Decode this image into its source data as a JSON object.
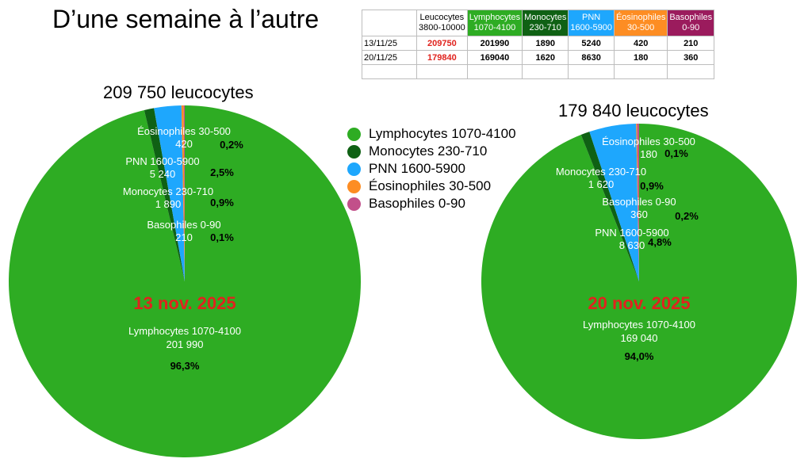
{
  "title": "D’une semaine à l’autre",
  "table": {
    "headers": [
      {
        "label": "Leucocytes\n3800-10000",
        "bg": "#ffffff",
        "fg": "#000000"
      },
      {
        "label": "Lymphocytes\n1070-4100",
        "bg": "#2eac23",
        "fg": "#ffffff"
      },
      {
        "label": "Monocytes\n230-710",
        "bg": "#0f6114",
        "fg": "#ffffff"
      },
      {
        "label": "PNN\n1600-5900",
        "bg": "#1ea7fd",
        "fg": "#ffffff"
      },
      {
        "label": "Éosinophiles\n30-500",
        "bg": "#fd8d23",
        "fg": "#ffffff"
      },
      {
        "label": "Basophiles\n0-90",
        "bg": "#9b1b5d",
        "fg": "#ffffff"
      }
    ],
    "rows": [
      {
        "date": "13/11/25",
        "values": [
          "209750",
          "201990",
          "1890",
          "5240",
          "420",
          "210"
        ]
      },
      {
        "date": "20/11/25",
        "values": [
          "179840",
          "169040",
          "1620",
          "8630",
          "180",
          "360"
        ]
      }
    ]
  },
  "legend": [
    {
      "label": "Lymphocytes 1070-4100",
      "color": "#2eac23"
    },
    {
      "label": "Monocytes 230-710",
      "color": "#0f6114"
    },
    {
      "label": "PNN 1600-5900",
      "color": "#1ea7fd"
    },
    {
      "label": "Éosinophiles 30-500",
      "color": "#fd8d23"
    },
    {
      "label": "Basophiles 0-90",
      "color": "#c2508a"
    }
  ],
  "chart_data": [
    {
      "type": "pie",
      "title": "209 750 leucocytes",
      "date_label": "13 nov. 2025",
      "slices": [
        {
          "name": "Lymphocytes 1070-4100",
          "value": 201990,
          "value_label": "201 990",
          "pct": "96,3%",
          "color": "#2eac23"
        },
        {
          "name": "Monocytes 230-710",
          "value": 1890,
          "value_label": "1 890",
          "pct": "0,9%",
          "color": "#0f6114"
        },
        {
          "name": "PNN 1600-5900",
          "value": 5240,
          "value_label": "5 240",
          "pct": "2,5%",
          "color": "#1ea7fd"
        },
        {
          "name": "Éosinophiles 30-500",
          "value": 420,
          "value_label": "420",
          "pct": "0,2%",
          "color": "#fd8d23"
        },
        {
          "name": "Basophiles 0-90",
          "value": 210,
          "value_label": "210",
          "pct": "0,1%",
          "color": "#c2508a"
        }
      ]
    },
    {
      "type": "pie",
      "title": "179 840 leucocytes",
      "date_label": "20 nov. 2025",
      "slices": [
        {
          "name": "Lymphocytes 1070-4100",
          "value": 169040,
          "value_label": "169 040",
          "pct": "94,0%",
          "color": "#2eac23"
        },
        {
          "name": "Monocytes 230-710",
          "value": 1620,
          "value_label": "1 620",
          "pct": "0,9%",
          "color": "#0f6114"
        },
        {
          "name": "PNN 1600-5900",
          "value": 8630,
          "value_label": "8 630",
          "pct": "4,8%",
          "color": "#1ea7fd"
        },
        {
          "name": "Éosinophiles 30-500",
          "value": 180,
          "value_label": "180",
          "pct": "0,1%",
          "color": "#fd8d23"
        },
        {
          "name": "Basophiles 0-90",
          "value": 360,
          "value_label": "360",
          "pct": "0,2%",
          "color": "#c2508a"
        }
      ]
    }
  ]
}
